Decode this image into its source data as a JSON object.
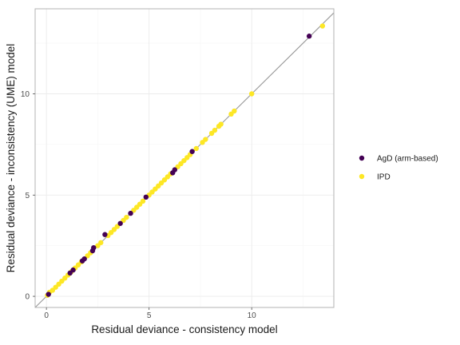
{
  "chart_data": {
    "type": "scatter",
    "xlabel": "Residual deviance - consistency model",
    "ylabel": "Residual deviance - inconsistency (UME) model",
    "xlim": [
      -0.55,
      14.0
    ],
    "ylim": [
      -0.55,
      14.2
    ],
    "xticks": [
      0,
      5,
      10
    ],
    "yticks": [
      0,
      5,
      10
    ],
    "grid": true,
    "reference_line": "y = x",
    "legend_position": "right",
    "series": [
      {
        "name": "AgD (arm-based)",
        "color": "#440154",
        "points": [
          [
            0.1,
            0.1
          ],
          [
            1.15,
            1.15
          ],
          [
            1.3,
            1.3
          ],
          [
            1.75,
            1.75
          ],
          [
            1.85,
            1.85
          ],
          [
            2.25,
            2.25
          ],
          [
            2.3,
            2.4
          ],
          [
            2.85,
            3.05
          ],
          [
            3.6,
            3.6
          ],
          [
            4.1,
            4.1
          ],
          [
            4.85,
            4.9
          ],
          [
            6.15,
            6.1
          ],
          [
            6.25,
            6.25
          ],
          [
            7.1,
            7.15
          ],
          [
            12.8,
            12.85
          ]
        ]
      },
      {
        "name": "IPD",
        "color": "#FDE725",
        "points": [
          [
            0.05,
            0.05
          ],
          [
            0.15,
            0.2
          ],
          [
            0.3,
            0.3
          ],
          [
            0.45,
            0.45
          ],
          [
            0.6,
            0.6
          ],
          [
            0.75,
            0.75
          ],
          [
            0.9,
            0.9
          ],
          [
            1.05,
            1.05
          ],
          [
            1.2,
            1.2
          ],
          [
            1.4,
            1.4
          ],
          [
            1.55,
            1.55
          ],
          [
            1.7,
            1.7
          ],
          [
            2.0,
            2.0
          ],
          [
            2.15,
            2.15
          ],
          [
            2.5,
            2.5
          ],
          [
            2.65,
            2.65
          ],
          [
            3.0,
            3.0
          ],
          [
            3.15,
            3.15
          ],
          [
            3.3,
            3.3
          ],
          [
            3.45,
            3.45
          ],
          [
            3.75,
            3.75
          ],
          [
            3.9,
            3.9
          ],
          [
            4.25,
            4.25
          ],
          [
            4.4,
            4.4
          ],
          [
            4.55,
            4.55
          ],
          [
            4.7,
            4.7
          ],
          [
            5.0,
            5.0
          ],
          [
            5.15,
            5.15
          ],
          [
            5.3,
            5.3
          ],
          [
            5.45,
            5.45
          ],
          [
            5.6,
            5.6
          ],
          [
            5.75,
            5.75
          ],
          [
            5.9,
            5.9
          ],
          [
            6.05,
            6.05
          ],
          [
            6.4,
            6.4
          ],
          [
            6.55,
            6.55
          ],
          [
            6.7,
            6.7
          ],
          [
            6.85,
            6.85
          ],
          [
            7.0,
            7.0
          ],
          [
            7.3,
            7.3
          ],
          [
            7.6,
            7.6
          ],
          [
            7.75,
            7.75
          ],
          [
            8.05,
            8.05
          ],
          [
            8.2,
            8.2
          ],
          [
            8.4,
            8.4
          ],
          [
            8.5,
            8.5
          ],
          [
            9.0,
            9.0
          ],
          [
            9.15,
            9.15
          ],
          [
            10.0,
            10.0
          ],
          [
            13.45,
            13.35
          ]
        ]
      }
    ]
  }
}
